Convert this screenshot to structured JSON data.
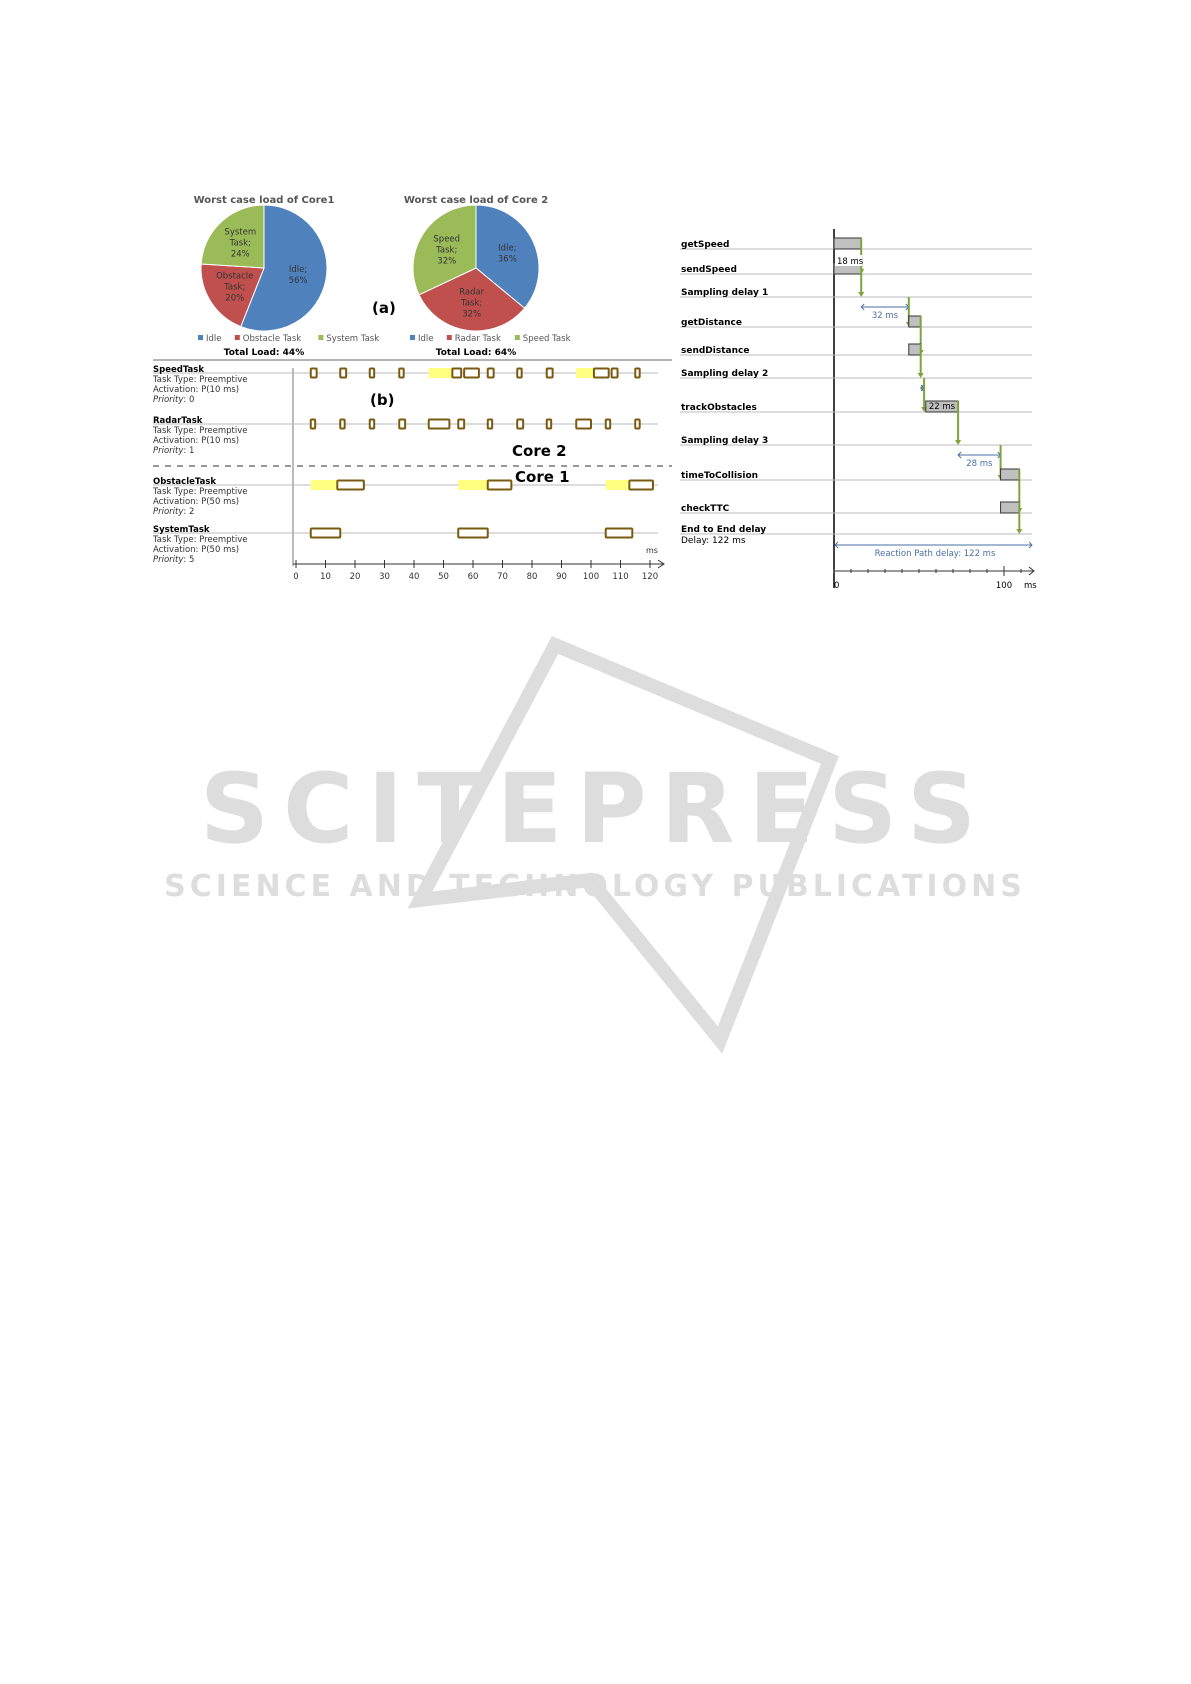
{
  "watermark": {
    "line1": "SCITEPRESS",
    "line2": "SCIENCE AND TECHNOLOGY PUBLICATIONS"
  },
  "colors": {
    "idle": "#4f81bd",
    "red": "#c0504d",
    "green": "#9bbb59",
    "wait": "#ffff80",
    "exec_border": "#7a5a10",
    "arrow": "#7ea33a",
    "delay": "#4a6fa5"
  },
  "chart_data": [
    {
      "type": "pie",
      "title": "Worst case load of Core1",
      "slices": [
        {
          "name": "Idle",
          "label": "Idle;",
          "value": 56,
          "color": "#4f81bd"
        },
        {
          "name": "Obstacle Task",
          "label": "Obstacle Task;",
          "value": 20,
          "color": "#c0504d"
        },
        {
          "name": "System Task",
          "label": "System Task;",
          "value": 24,
          "color": "#9bbb59"
        }
      ],
      "legend": "bottom",
      "footer": "Total Load: 44%"
    },
    {
      "type": "pie",
      "title": "Worst case load of Core 2",
      "slices": [
        {
          "name": "Idle",
          "label": "Idle;",
          "value": 36,
          "color": "#4f81bd"
        },
        {
          "name": "Radar Task",
          "label": "Radar Task;",
          "value": 32,
          "color": "#c0504d"
        },
        {
          "name": "Speed Task",
          "label": "Speed Task;",
          "value": 32,
          "color": "#9bbb59"
        }
      ],
      "legend": "bottom",
      "footer": "Total Load: 64%"
    },
    {
      "type": "gantt",
      "panel_label": "(b)",
      "core2_label": "Core 2",
      "core1_label": "Core 1",
      "x_unit": "ms",
      "x_ticks": [
        0,
        10,
        20,
        30,
        40,
        50,
        60,
        70,
        80,
        90,
        100,
        110,
        120
      ],
      "tasks": [
        {
          "name": "SpeedTask",
          "type": "Task Type: Preemptive",
          "activation": "Activation: P(10 ms)",
          "priority_label": "Priority",
          "priority": ": 0",
          "wait": [
            [
              45,
              53
            ],
            [
              95,
              101
            ]
          ],
          "exec": [
            [
              5,
              7
            ],
            [
              15,
              17
            ],
            [
              25,
              26.5
            ],
            [
              35,
              36.5
            ],
            [
              53,
              56
            ],
            [
              57,
              62
            ],
            [
              65,
              67
            ],
            [
              75,
              76.5
            ],
            [
              85,
              87
            ],
            [
              101,
              106
            ],
            [
              107,
              109
            ],
            [
              115,
              116.5
            ]
          ]
        },
        {
          "name": "RadarTask",
          "type": "Task Type: Preemptive",
          "activation": "Activation: P(10 ms)",
          "priority_label": "Priority",
          "priority": ": 1",
          "wait": [],
          "exec": [
            [
              5,
              6.5
            ],
            [
              15,
              16.5
            ],
            [
              25,
              26.5
            ],
            [
              35,
              37
            ],
            [
              45,
              52
            ],
            [
              55,
              57
            ],
            [
              65,
              66.5
            ],
            [
              75,
              77
            ],
            [
              85,
              86.5
            ],
            [
              95,
              100
            ],
            [
              105,
              106.5
            ],
            [
              115,
              116.5
            ]
          ]
        },
        {
          "name": "ObstacleTask",
          "type": "Task Type: Preemptive",
          "activation": "Activation: P(50 ms)",
          "priority_label": "Priority",
          "priority": ": 2",
          "wait": [
            [
              5,
              14
            ],
            [
              55,
              65
            ],
            [
              105,
              113
            ]
          ],
          "exec": [
            [
              14,
              23
            ],
            [
              65,
              73
            ],
            [
              113,
              121
            ]
          ]
        },
        {
          "name": "SystemTask",
          "type": "Task Type: Preemptive",
          "activation": "Activation: P(50 ms)",
          "priority_label": "Priority",
          "priority": ": 5",
          "wait": [],
          "exec": [
            [
              5,
              15
            ],
            [
              55,
              65
            ],
            [
              105,
              114
            ]
          ]
        }
      ]
    },
    {
      "type": "timing",
      "x_unit": "ms",
      "x_tick_labels": [
        "0",
        "100"
      ],
      "rows": [
        {
          "label": "getSpeed",
          "box": [
            0,
            16
          ]
        },
        {
          "label": "sendSpeed",
          "box": [
            0,
            16
          ]
        },
        {
          "label": "Sampling delay 1",
          "delay": [
            16,
            44
          ],
          "delay_label": "32 ms"
        },
        {
          "label": "getDistance",
          "box": [
            44,
            51
          ]
        },
        {
          "label": "sendDistance",
          "box": [
            44,
            51
          ]
        },
        {
          "label": "Sampling delay 2",
          "delay": [
            51,
            53
          ],
          "delay_label": ""
        },
        {
          "label": "trackObstacles",
          "box": [
            54,
            73
          ],
          "box_label": "22 ms"
        },
        {
          "label": "Sampling delay 3",
          "delay": [
            73,
            98
          ],
          "delay_label": "28 ms"
        },
        {
          "label": "timeToCollision",
          "box": [
            98,
            109
          ]
        },
        {
          "label": "checkTTC",
          "box": [
            98,
            109
          ]
        },
        {
          "label": "End to End delay",
          "sublabel": "Delay: 122 ms"
        }
      ],
      "box_callout": "18 ms",
      "reaction_path": "Reaction Path delay: 122 ms",
      "panel_label": "(a)"
    }
  ]
}
